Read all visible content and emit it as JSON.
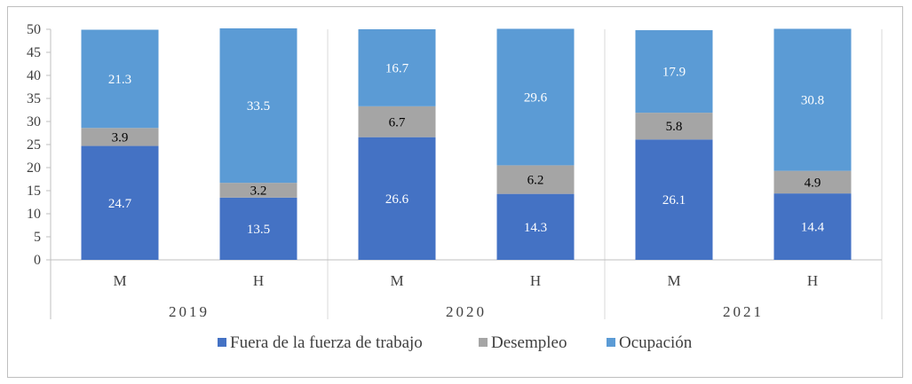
{
  "chart_data": {
    "type": "bar",
    "stacked": true,
    "ylim": [
      0,
      50
    ],
    "yticks": [
      0,
      5,
      10,
      15,
      20,
      25,
      30,
      35,
      40,
      45,
      50
    ],
    "grid": false,
    "legend_position": "bottom",
    "groups": [
      {
        "year": "2019",
        "categories": [
          "M",
          "H"
        ]
      },
      {
        "year": "2020",
        "categories": [
          "M",
          "H"
        ]
      },
      {
        "year": "2021",
        "categories": [
          "M",
          "H"
        ]
      }
    ],
    "categories": [
      "M",
      "H",
      "M",
      "H",
      "M",
      "H"
    ],
    "series": [
      {
        "name": "Fuera de la fuerza de trabajo",
        "color": "#4472c4",
        "values": [
          24.7,
          13.5,
          26.6,
          14.3,
          26.1,
          14.4
        ]
      },
      {
        "name": "Desempleo",
        "color": "#a5a5a5",
        "values": [
          3.9,
          3.2,
          6.7,
          6.2,
          5.8,
          4.9
        ]
      },
      {
        "name": "Ocupación",
        "color": "#5b9bd5",
        "values": [
          21.3,
          33.5,
          16.7,
          29.6,
          17.9,
          30.8
        ]
      }
    ]
  }
}
